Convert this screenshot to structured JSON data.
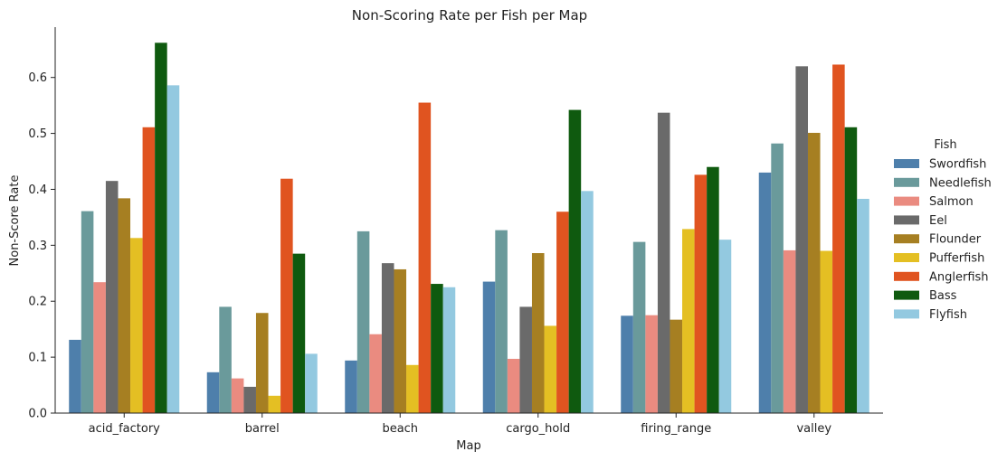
{
  "chart_data": {
    "type": "bar",
    "title": "Non-Scoring Rate per Fish per Map",
    "xlabel": "Map",
    "ylabel": "Non-Score Rate",
    "ylim": [
      0,
      0.69
    ],
    "yticks": [
      "0.0",
      "0.1",
      "0.2",
      "0.3",
      "0.4",
      "0.5",
      "0.6"
    ],
    "grid": false,
    "legend_position": "right",
    "legend_title": "Fish",
    "categories": [
      "acid_factory",
      "barrel",
      "beach",
      "cargo_hold",
      "firing_range",
      "valley"
    ],
    "series": [
      {
        "name": "Swordfish",
        "color": "#4e7fab",
        "values": [
          0.131,
          0.073,
          0.094,
          0.235,
          0.174,
          0.43
        ]
      },
      {
        "name": "Needlefish",
        "color": "#6a9a9b",
        "values": [
          0.361,
          0.19,
          0.325,
          0.327,
          0.306,
          0.482
        ]
      },
      {
        "name": "Salmon",
        "color": "#ea8b80",
        "values": [
          0.234,
          0.062,
          0.141,
          0.097,
          0.175,
          0.291
        ]
      },
      {
        "name": "Eel",
        "color": "#6a6a6a",
        "values": [
          0.415,
          0.047,
          0.268,
          0.19,
          0.537,
          0.62
        ]
      },
      {
        "name": "Flounder",
        "color": "#a67f22",
        "values": [
          0.384,
          0.179,
          0.257,
          0.286,
          0.167,
          0.501
        ]
      },
      {
        "name": "Pufferfish",
        "color": "#e4bf23",
        "values": [
          0.313,
          0.031,
          0.086,
          0.156,
          0.329,
          0.29
        ]
      },
      {
        "name": "Anglerfish",
        "color": "#e05420",
        "values": [
          0.511,
          0.419,
          0.555,
          0.36,
          0.426,
          0.623
        ]
      },
      {
        "name": "Bass",
        "color": "#0f5a0f",
        "values": [
          0.662,
          0.285,
          0.231,
          0.542,
          0.44,
          0.511
        ]
      },
      {
        "name": "Flyfish",
        "color": "#93c9e0",
        "values": [
          0.586,
          0.106,
          0.225,
          0.397,
          0.31,
          0.383
        ]
      }
    ]
  }
}
